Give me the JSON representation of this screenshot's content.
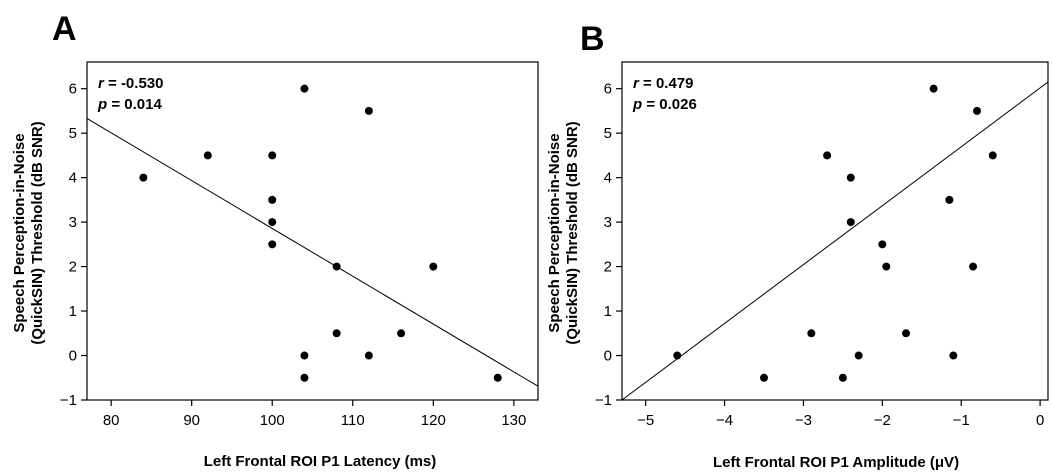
{
  "chart_data": [
    {
      "panel": "A",
      "type": "scatter",
      "xlabel": "Left Frontal ROI P1 Latency (ms)",
      "ylabel_line1": "Speech Perception-in-Noise",
      "ylabel_line2": "(QuickSIN) Threshold (dB SNR)",
      "xlim": [
        77,
        133
      ],
      "ylim": [
        -1,
        6.6
      ],
      "xticks": [
        80,
        90,
        100,
        110,
        120,
        130
      ],
      "xtick_labels": [
        "80",
        "90",
        "100",
        "110",
        "120",
        "130"
      ],
      "yticks": [
        -1,
        0,
        1,
        2,
        3,
        4,
        5,
        6
      ],
      "ytick_labels": [
        "−1",
        "0",
        "1",
        "2",
        "3",
        "4",
        "5",
        "6"
      ],
      "stat_r_sym": "r",
      "stat_r_val": " = -0.530",
      "stat_p_sym": "p",
      "stat_p_val": " = 0.014",
      "points": [
        {
          "x": 84,
          "y": 4.0
        },
        {
          "x": 92,
          "y": 4.5
        },
        {
          "x": 100,
          "y": 4.5
        },
        {
          "x": 100,
          "y": 3.5
        },
        {
          "x": 100,
          "y": 3.0
        },
        {
          "x": 100,
          "y": 2.5
        },
        {
          "x": 104,
          "y": 6.0
        },
        {
          "x": 104,
          "y": 0.0
        },
        {
          "x": 104,
          "y": -0.5
        },
        {
          "x": 108,
          "y": 2.0
        },
        {
          "x": 108,
          "y": 0.5
        },
        {
          "x": 112,
          "y": 5.5
        },
        {
          "x": 112,
          "y": 0.0
        },
        {
          "x": 116,
          "y": 0.5
        },
        {
          "x": 120,
          "y": 2.0
        },
        {
          "x": 128,
          "y": -0.5
        }
      ],
      "fit_line": {
        "x": [
          77,
          133
        ],
        "y": [
          5.33,
          -0.69
        ]
      }
    },
    {
      "panel": "B",
      "type": "scatter",
      "xlabel": "Left Frontal ROI P1 Amplitude (μV)",
      "ylabel_line1": "Speech Perception-in-Noise",
      "ylabel_line2": "(QuickSIN) Threshold (dB SNR)",
      "xlim": [
        -5.3,
        0.1
      ],
      "ylim": [
        -1,
        6.6
      ],
      "xticks": [
        -5,
        -4,
        -3,
        -2,
        -1,
        0
      ],
      "xtick_labels": [
        "−5",
        "−4",
        "−3",
        "−2",
        "−1",
        "0"
      ],
      "yticks": [
        -1,
        0,
        1,
        2,
        3,
        4,
        5,
        6
      ],
      "ytick_labels": [
        "−1",
        "0",
        "1",
        "2",
        "3",
        "4",
        "5",
        "6"
      ],
      "stat_r_sym": "r",
      "stat_r_val": " = 0.479",
      "stat_p_sym": "p",
      "stat_p_val": " = 0.026",
      "points": [
        {
          "x": -4.6,
          "y": 0.0
        },
        {
          "x": -3.5,
          "y": -0.5
        },
        {
          "x": -2.9,
          "y": 0.5
        },
        {
          "x": -2.7,
          "y": 4.5
        },
        {
          "x": -2.5,
          "y": -0.5
        },
        {
          "x": -2.4,
          "y": 4.0
        },
        {
          "x": -2.4,
          "y": 3.0
        },
        {
          "x": -2.3,
          "y": 0.0
        },
        {
          "x": -2.0,
          "y": 2.5
        },
        {
          "x": -1.95,
          "y": 2.0
        },
        {
          "x": -1.7,
          "y": 0.5
        },
        {
          "x": -1.35,
          "y": 6.0
        },
        {
          "x": -1.15,
          "y": 3.5
        },
        {
          "x": -1.1,
          "y": 0.0
        },
        {
          "x": -0.85,
          "y": 2.0
        },
        {
          "x": -0.8,
          "y": 5.5
        },
        {
          "x": -0.6,
          "y": 4.5
        }
      ],
      "fit_line": {
        "x": [
          -5.3,
          0.1
        ],
        "y": [
          -1.0,
          6.15
        ]
      }
    }
  ]
}
